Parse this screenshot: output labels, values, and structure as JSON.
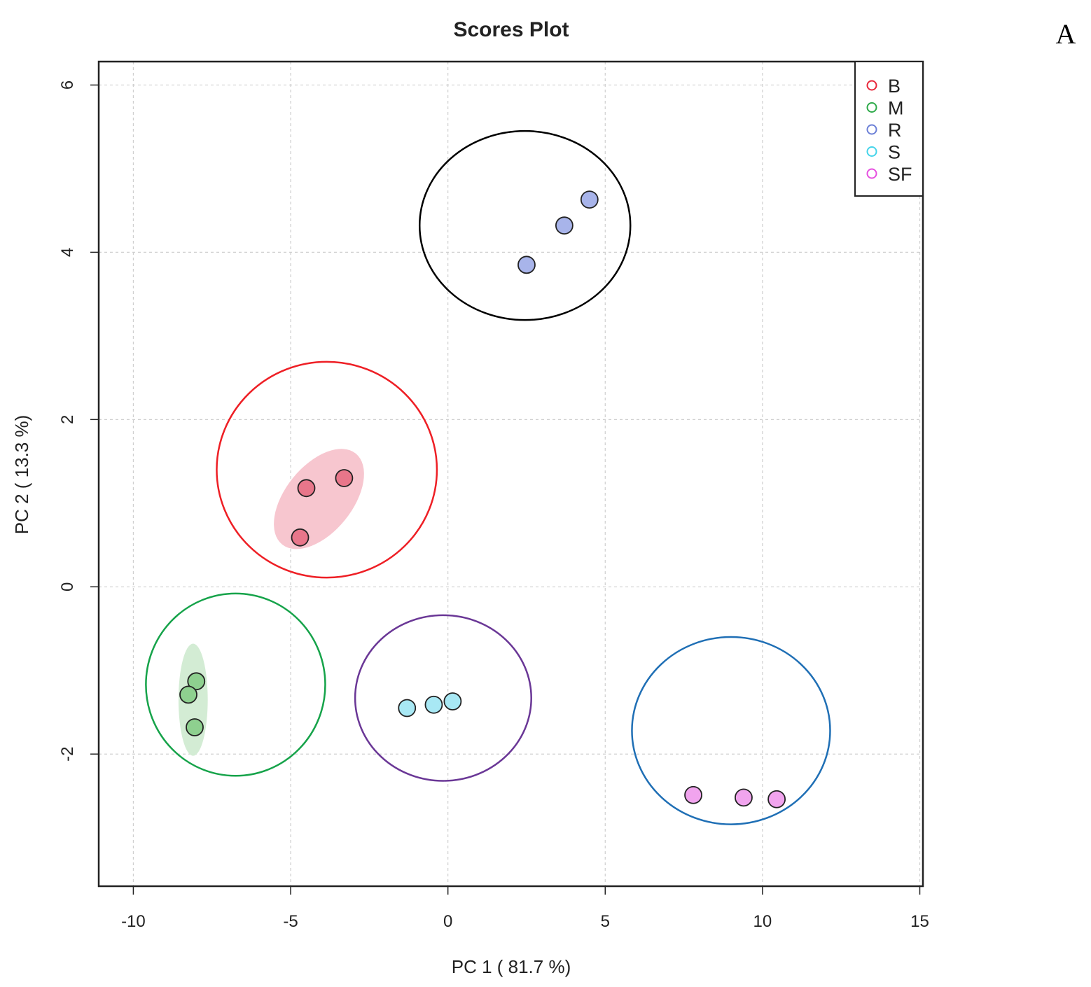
{
  "panel_label": "A",
  "chart_data": {
    "type": "scatter",
    "title": "Scores Plot",
    "xlabel": "PC 1 ( 81.7 %)",
    "ylabel": "PC 2 ( 13.3 %)",
    "xlim": [
      -11.1,
      15.1
    ],
    "ylim": [
      -3.58,
      6.28
    ],
    "x_ticks": [
      -10,
      -5,
      0,
      5,
      10,
      15
    ],
    "y_ticks": [
      -2,
      0,
      2,
      4,
      6
    ],
    "x_tick_labels": [
      "-10",
      "-5",
      "0",
      "5",
      "10",
      "15"
    ],
    "y_tick_labels": [
      "-2",
      "0",
      "2",
      "4",
      "6"
    ],
    "grid": true,
    "legend_position": "top-right",
    "series": [
      {
        "name": "B",
        "color": "#e8273a",
        "point_fill": "#e8768a",
        "x": [
          -4.5,
          -3.3,
          -4.7
        ],
        "y": [
          1.18,
          1.3,
          0.59
        ],
        "confidence_ellipse": {
          "cx": -4.1,
          "cy": 1.05,
          "rx": 1.2,
          "ry": 0.4,
          "angle_deg": 51,
          "fill": "#f7c6cf"
        },
        "group_circle": {
          "cx": -3.85,
          "cy": 1.4,
          "rx": 3.5,
          "ry": 1.29,
          "stroke": "#ee1f25"
        }
      },
      {
        "name": "M",
        "color": "#2eaa4a",
        "point_fill": "#8ed08f",
        "x": [
          -8.0,
          -8.25,
          -8.05
        ],
        "y": [
          -1.13,
          -1.29,
          -1.68
        ],
        "confidence_ellipse": {
          "cx": -8.1,
          "cy": -1.35,
          "rx": 0.3,
          "ry": 0.67,
          "angle_deg": 0,
          "fill": "#d3ecd4"
        },
        "group_circle": {
          "cx": -6.75,
          "cy": -1.17,
          "rx": 2.85,
          "ry": 1.09,
          "stroke": "#16a34a"
        }
      },
      {
        "name": "R",
        "color": "#6b7fd6",
        "point_fill": "#a8b4ea",
        "x": [
          4.5,
          3.7,
          2.5
        ],
        "y": [
          4.63,
          4.32,
          3.85
        ],
        "group_circle": {
          "cx": 2.45,
          "cy": 4.32,
          "rx": 3.35,
          "ry": 1.13,
          "stroke": "#000000"
        }
      },
      {
        "name": "S",
        "color": "#45d4ea",
        "point_fill": "#a8e8f4",
        "x": [
          -1.3,
          -0.45,
          0.15
        ],
        "y": [
          -1.45,
          -1.41,
          -1.37
        ],
        "group_circle": {
          "cx": -0.15,
          "cy": -1.33,
          "rx": 2.8,
          "ry": 0.99,
          "stroke": "#6a3796"
        }
      },
      {
        "name": "SF",
        "color": "#e64fe0",
        "point_fill": "#f1a4ee",
        "x": [
          7.8,
          9.4,
          10.45
        ],
        "y": [
          -2.49,
          -2.52,
          -2.54
        ],
        "group_circle": {
          "cx": 9.0,
          "cy": -1.72,
          "rx": 3.15,
          "ry": 1.12,
          "stroke": "#1f6fb5"
        }
      }
    ]
  }
}
